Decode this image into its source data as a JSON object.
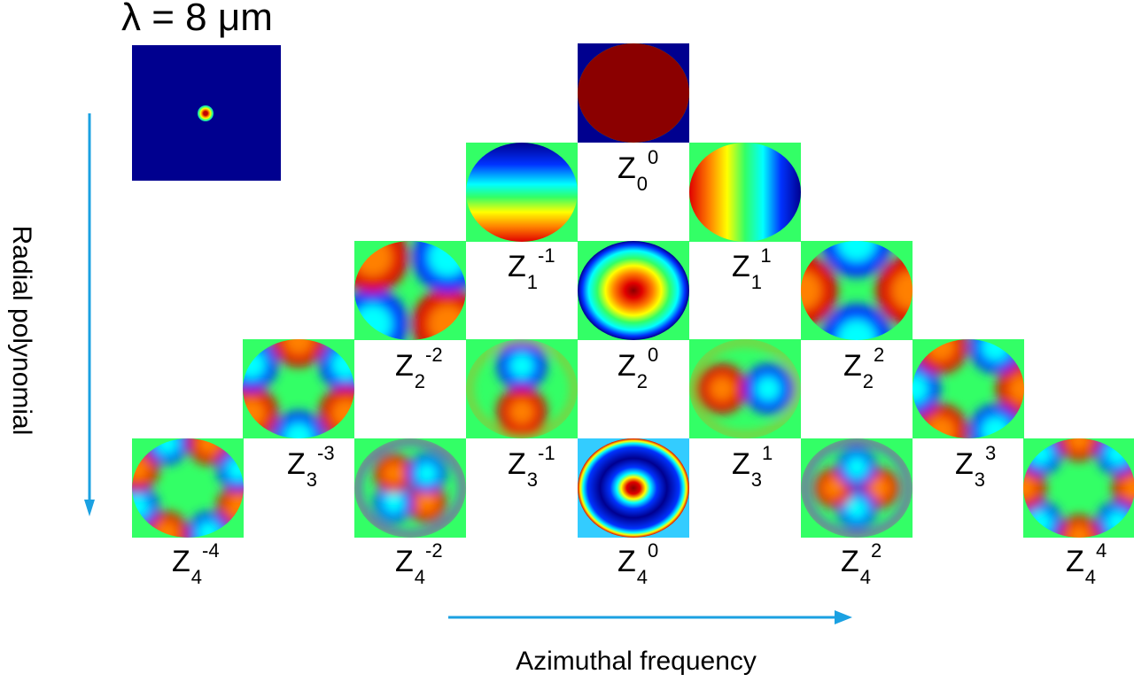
{
  "title": "λ = 8 μm",
  "axes": {
    "vertical_label": "Radial polynomial",
    "horizontal_label": "Azimuthal frequency",
    "arrow_color": "#1ba1e2"
  },
  "colormap": {
    "dark_blue": "#00008f",
    "blue": "#0033ff",
    "cyan": "#00ffff",
    "green": "#33ff66",
    "yellow": "#ffff00",
    "orange": "#ff8000",
    "red": "#e00000",
    "dark_red": "#8b0000"
  },
  "modes": [
    {
      "n": "0",
      "m": "0"
    },
    {
      "n": "1",
      "m": "-1"
    },
    {
      "n": "1",
      "m": "1"
    },
    {
      "n": "2",
      "m": "-2"
    },
    {
      "n": "2",
      "m": "0"
    },
    {
      "n": "2",
      "m": "2"
    },
    {
      "n": "3",
      "m": "-3"
    },
    {
      "n": "3",
      "m": "-1"
    },
    {
      "n": "3",
      "m": "1"
    },
    {
      "n": "3",
      "m": "3"
    },
    {
      "n": "4",
      "m": "-4"
    },
    {
      "n": "4",
      "m": "-2"
    },
    {
      "n": "4",
      "m": "0"
    },
    {
      "n": "4",
      "m": "2"
    },
    {
      "n": "4",
      "m": "4"
    }
  ]
}
